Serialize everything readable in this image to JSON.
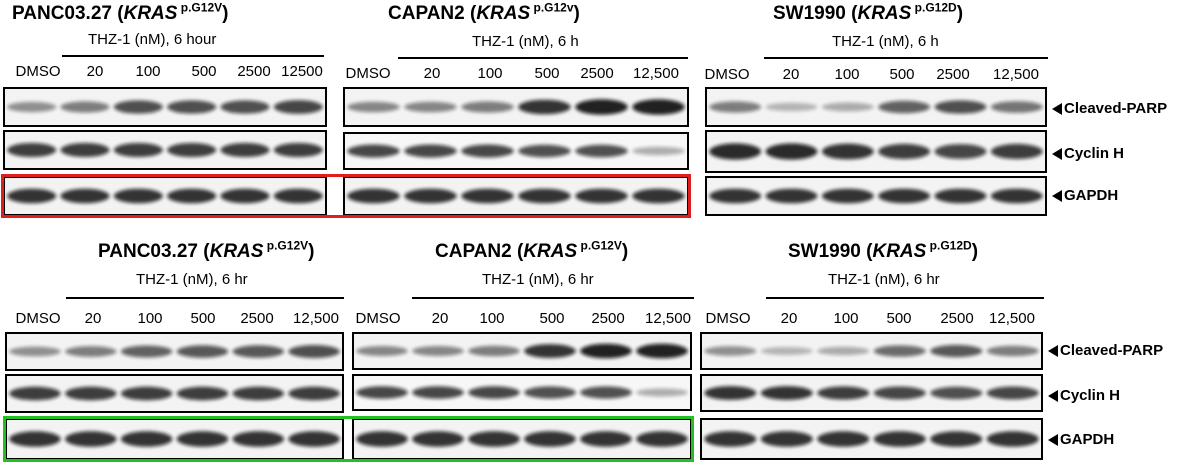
{
  "rows": [
    {
      "panels": [
        {
          "line": "PANC03.27",
          "open": " (",
          "gene": "KRAS",
          "sup": " p.G12V",
          "close": ")",
          "treatment": "THZ-1  (nM), 6 hour",
          "lanes": [
            "DMSO",
            "20",
            "100",
            "500",
            "2500",
            "12500"
          ],
          "parp": [
            0.35,
            0.45,
            0.7,
            0.7,
            0.7,
            0.75
          ],
          "cyclin": [
            0.8,
            0.8,
            0.8,
            0.8,
            0.8,
            0.8
          ],
          "gapdh": [
            0.85,
            0.85,
            0.85,
            0.85,
            0.85,
            0.85
          ]
        },
        {
          "line": "CAPAN2",
          "open": " (",
          "gene": "KRAS",
          "sup": " p.G12v",
          "close": ")",
          "treatment": "THZ-1 (nM), 6 h",
          "lanes": [
            "DMSO",
            "20",
            "100",
            "500",
            "2500",
            "12,500"
          ],
          "parp": [
            0.4,
            0.4,
            0.45,
            0.85,
            0.95,
            0.95
          ],
          "cyclin": [
            0.75,
            0.75,
            0.75,
            0.7,
            0.7,
            0.2
          ],
          "gapdh": [
            0.85,
            0.85,
            0.85,
            0.85,
            0.85,
            0.85
          ]
        },
        {
          "line": "SW1990",
          "open": " (",
          "gene": "KRAS",
          "sup": " p.G12D",
          "close": ")",
          "treatment": "THZ-1 (nM), 6 h",
          "lanes": [
            "DMSO",
            "20",
            "100",
            "500",
            "2500",
            "12,500"
          ],
          "parp": [
            0.45,
            0.15,
            0.2,
            0.6,
            0.7,
            0.5
          ],
          "cyclin": [
            0.9,
            0.9,
            0.85,
            0.8,
            0.75,
            0.8
          ],
          "gapdh": [
            0.85,
            0.85,
            0.85,
            0.85,
            0.85,
            0.85
          ]
        }
      ],
      "markers": [
        "Cleaved-PARP",
        "Cyclin H",
        "GAPDH"
      ]
    },
    {
      "panels": [
        {
          "line": "PANC03.27",
          "open": " (",
          "gene": "KRAS",
          "sup": " p.G12V",
          "close": ")",
          "treatment": "THZ-1 (nM), 6 hr",
          "lanes": [
            "DMSO",
            "20",
            "100",
            "500",
            "2500",
            "12,500"
          ],
          "parp": [
            0.35,
            0.45,
            0.6,
            0.65,
            0.65,
            0.7
          ],
          "cyclin": [
            0.8,
            0.8,
            0.8,
            0.8,
            0.8,
            0.8
          ],
          "gapdh": [
            0.85,
            0.85,
            0.85,
            0.85,
            0.85,
            0.85
          ]
        },
        {
          "line": "CAPAN2",
          "open": " (",
          "gene": "KRAS",
          "sup": " p.G12V",
          "close": ")",
          "treatment": "THZ-1 (nM), 6 hr",
          "lanes": [
            "DMSO",
            "20",
            "100",
            "500",
            "2500",
            "12,500"
          ],
          "parp": [
            0.4,
            0.4,
            0.45,
            0.85,
            0.95,
            0.95
          ],
          "cyclin": [
            0.75,
            0.75,
            0.75,
            0.7,
            0.7,
            0.2
          ],
          "gapdh": [
            0.85,
            0.85,
            0.85,
            0.85,
            0.85,
            0.85
          ]
        },
        {
          "line": "SW1990",
          "open": " (",
          "gene": "KRAS",
          "sup": " p.G12D",
          "close": ")",
          "treatment": "THZ-1 (nM), 6 hr",
          "lanes": [
            "DMSO",
            "20",
            "100",
            "500",
            "2500",
            "12,500"
          ],
          "parp": [
            0.35,
            0.15,
            0.2,
            0.55,
            0.65,
            0.45
          ],
          "cyclin": [
            0.85,
            0.85,
            0.8,
            0.75,
            0.7,
            0.75
          ],
          "gapdh": [
            0.85,
            0.85,
            0.85,
            0.85,
            0.85,
            0.85
          ]
        }
      ],
      "markers": [
        "Cleaved-PARP",
        "Cyclin H",
        "GAPDH"
      ]
    }
  ],
  "highlight_colors": {
    "top": "#dd1f1f",
    "bottom": "#22c022"
  }
}
